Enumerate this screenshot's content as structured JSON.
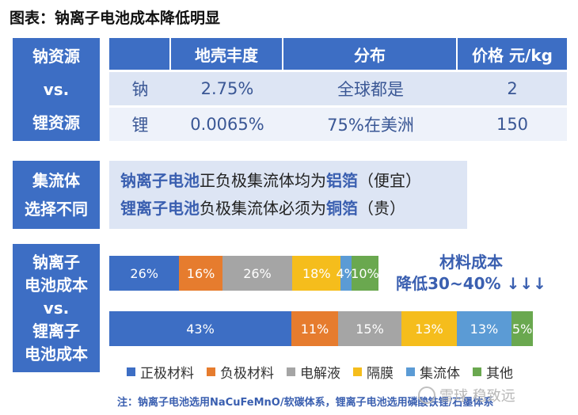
{
  "title": "图表：钠离子电池成本降低明显",
  "section1": {
    "label_lines": [
      "钠资源",
      "vs.",
      "锂资源"
    ],
    "headers": [
      "",
      "地壳丰度",
      "分布",
      "价格 元/kg"
    ],
    "rows": [
      [
        "钠",
        "2.75%",
        "全球都是",
        "2"
      ],
      [
        "锂",
        "0.0065%",
        "75%在美洲",
        "150"
      ]
    ]
  },
  "section2": {
    "label_lines": [
      "集流体",
      "选择不同"
    ],
    "line1": {
      "hl1": "钠离子电池",
      "mid": "正负极集流体均为",
      "hl2": "铝箔",
      "tail": "（便宜）"
    },
    "line2": {
      "hl1": "锂离子电池",
      "mid": "负极集流体必须为",
      "hl2": "铜箔",
      "tail": "（贵）"
    }
  },
  "section3": {
    "label_lines": [
      "钠离子",
      "电池成本",
      "vs.",
      "锂离子",
      "电池成本"
    ],
    "cost_note_lines": [
      "材料成本",
      "降低30~40% ↓↓↓"
    ]
  },
  "colors": {
    "primary": "#3d6ec4",
    "cathode": "#3d6ec4",
    "anode": "#e67c2e",
    "electrolyte": "#a5a5a5",
    "separator": "#f5bd1c",
    "collector": "#5b9bd5",
    "other": "#6aa84f"
  },
  "chart_data": {
    "type": "bar",
    "orientation": "horizontal-stacked",
    "categories": [
      "钠离子电池",
      "锂离子电池"
    ],
    "series": [
      {
        "name": "正极材料",
        "values": [
          26,
          43
        ],
        "labels": [
          "26%",
          "43%"
        ]
      },
      {
        "name": "负极材料",
        "values": [
          16,
          11
        ],
        "labels": [
          "16%",
          "11%"
        ]
      },
      {
        "name": "电解液",
        "values": [
          26,
          15
        ],
        "labels": [
          "26%",
          "15%"
        ]
      },
      {
        "name": "隔膜",
        "values": [
          18,
          13
        ],
        "labels": [
          "18%",
          "13%"
        ]
      },
      {
        "name": "集流体",
        "values": [
          4,
          13
        ],
        "labels": [
          "4%",
          "13%"
        ]
      },
      {
        "name": "其他",
        "values": [
          10,
          5
        ],
        "labels": [
          "10%",
          "5%"
        ]
      }
    ],
    "legend_position": "bottom"
  },
  "footnote": "注：钠离子电池选用NaCuFeMnO/软碳体系，锂离子电池选用磷酸铁锂/石墨体系",
  "watermark": "雪球 稳致远"
}
